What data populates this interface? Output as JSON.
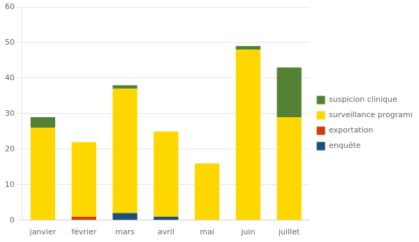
{
  "chart_data": {
    "type": "bar",
    "stacked": true,
    "categories": [
      "janvier",
      "février",
      "mars",
      "avril",
      "mai",
      "juin",
      "juillet"
    ],
    "series": [
      {
        "name": "enquête",
        "color": "#1F4E79",
        "values": [
          0,
          0,
          2,
          1,
          0,
          0,
          0
        ]
      },
      {
        "name": "exportation",
        "color": "#C9400A",
        "values": [
          0,
          1,
          0,
          0,
          0,
          0,
          0
        ]
      },
      {
        "name": "surveillance programmée",
        "color": "#FFD700",
        "values": [
          26,
          21,
          35,
          24,
          16,
          48,
          29
        ]
      },
      {
        "name": "suspicion clinique",
        "color": "#548235",
        "values": [
          3,
          0,
          1,
          0,
          0,
          1,
          14
        ]
      }
    ],
    "ylim": [
      0,
      60
    ],
    "yticks": [
      0,
      10,
      20,
      30,
      40,
      50,
      60
    ],
    "grid": true,
    "legend": "right"
  }
}
